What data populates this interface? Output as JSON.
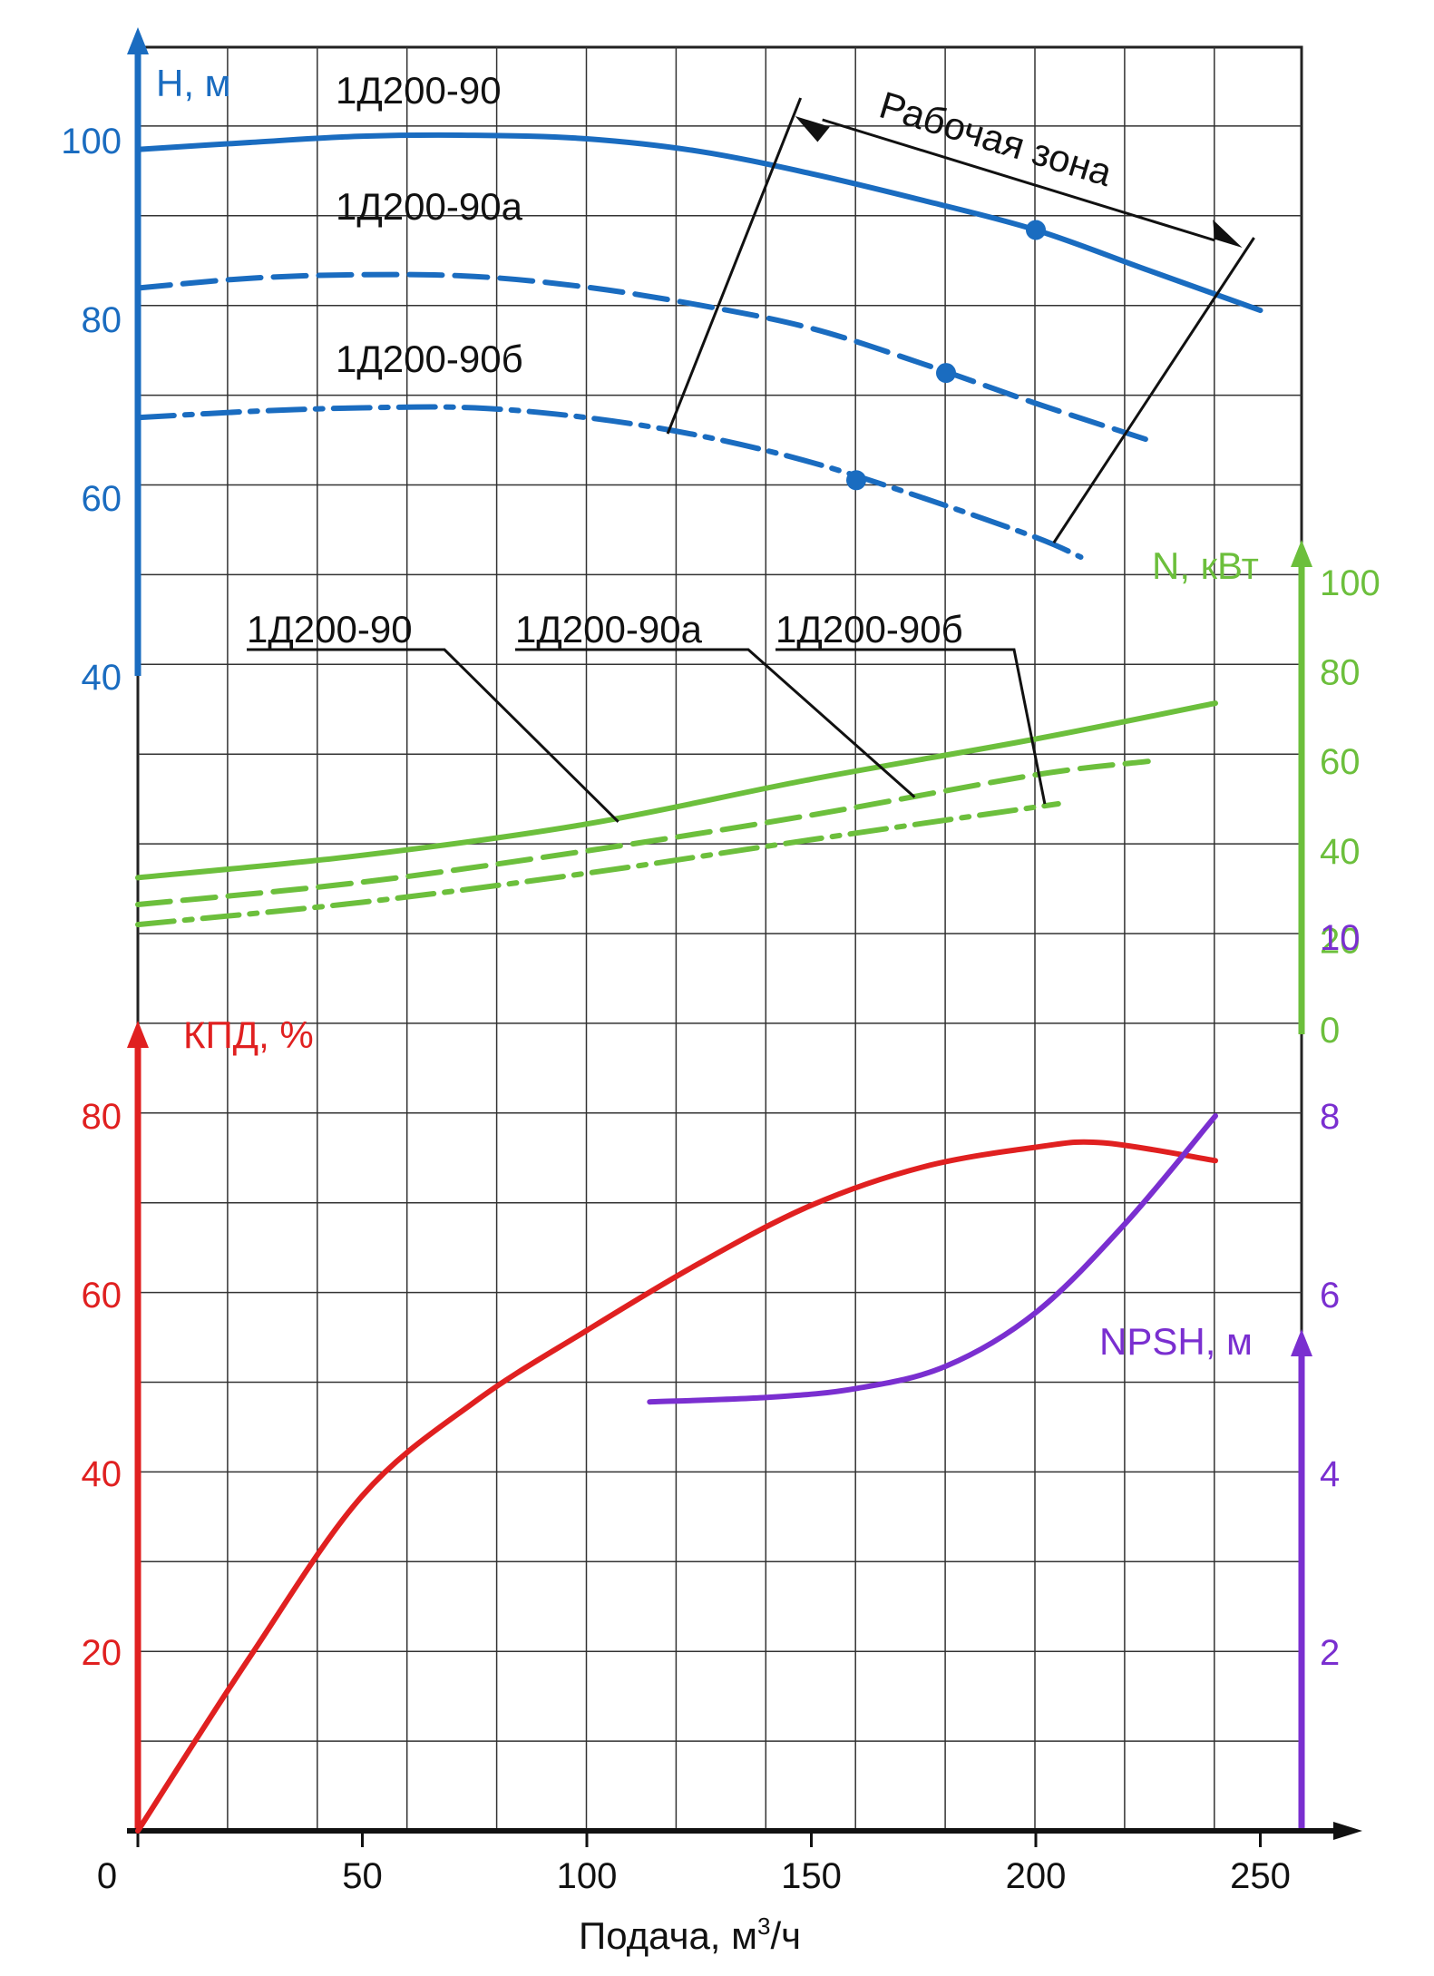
{
  "chart_data": {
    "type": "line",
    "title": "",
    "colors": {
      "head": "#1a6cc0",
      "power": "#6cbf3c",
      "efficiency": "#e02020",
      "npsh": "#7a2fd0",
      "grid": "#333333",
      "text": "#111111"
    },
    "x_axis": {
      "label": "Подача, м³/ч",
      "label_main": "Подача, м",
      "label_sup": "3",
      "label_tail": "/ч",
      "range": [
        0,
        260
      ],
      "ticks": [
        0,
        50,
        100,
        150,
        200,
        250
      ],
      "tick_labels": [
        "0",
        "50",
        "100",
        "150",
        "200",
        "250"
      ]
    },
    "axes": {
      "head": {
        "label": "H, м",
        "range": [
          40,
          110
        ],
        "ticks": [
          40,
          60,
          80,
          100
        ],
        "tick_labels": [
          "40",
          "60",
          "80",
          "100"
        ]
      },
      "power": {
        "label": "N, кВт",
        "range": [
          0,
          100
        ],
        "ticks": [
          0,
          20,
          40,
          60,
          80,
          100
        ],
        "tick_labels": [
          "0",
          "20",
          "40",
          "60",
          "80",
          "100"
        ]
      },
      "efficiency": {
        "label": "КПД, %",
        "range": [
          0,
          85
        ],
        "ticks": [
          20,
          40,
          60,
          80
        ],
        "tick_labels": [
          "20",
          "40",
          "60",
          "80"
        ]
      },
      "npsh": {
        "label": "NPSH, м",
        "range": [
          0,
          10
        ],
        "ticks": [
          2,
          4,
          6,
          8,
          10
        ],
        "tick_labels": [
          "2",
          "4",
          "6",
          "8",
          "10"
        ]
      }
    },
    "grid": true,
    "head_series": [
      {
        "name": "1Д200-90",
        "style": "solid",
        "x": [
          0,
          25,
          50,
          75,
          100,
          125,
          150,
          175,
          200,
          225,
          250
        ],
        "y": [
          99,
          99.8,
          100.5,
          100.6,
          100.2,
          98.8,
          96.3,
          93.3,
          90,
          85.5,
          81
        ],
        "marker": [
          200,
          90
        ]
      },
      {
        "name": "1Д200-90а",
        "style": "dashed",
        "x": [
          0,
          25,
          50,
          75,
          100,
          125,
          150,
          175,
          200,
          225
        ],
        "y": [
          83.5,
          84.6,
          85,
          84.8,
          83.6,
          81.6,
          79,
          75,
          70.6,
          66.5
        ],
        "marker": [
          180,
          74
        ]
      },
      {
        "name": "1Д200-90б",
        "style": "dashdot",
        "x": [
          0,
          25,
          50,
          75,
          100,
          125,
          150,
          175,
          200,
          210
        ],
        "y": [
          69,
          69.7,
          70.1,
          70.1,
          69,
          67,
          64,
          60,
          55.6,
          53.4
        ],
        "marker": [
          160,
          62
        ]
      }
    ],
    "work_zone": {
      "label": "Рабочая зона",
      "arrow_x": [
        147,
        248
      ]
    },
    "power_series": [
      {
        "name": "1Д200-90",
        "style": "solid",
        "x": [
          0,
          50,
          100,
          150,
          200,
          240
        ],
        "y": [
          34,
          39,
          46,
          56,
          65,
          73
        ]
      },
      {
        "name": "1Д200-90а",
        "style": "dashed",
        "x": [
          0,
          50,
          100,
          150,
          200,
          225
        ],
        "y": [
          28,
          33,
          40,
          48,
          57,
          60
        ]
      },
      {
        "name": "1Д200-90б",
        "style": "dashdot",
        "x": [
          0,
          50,
          100,
          150,
          205
        ],
        "y": [
          23.5,
          28.5,
          35,
          42.5,
          50.5
        ]
      }
    ],
    "power_labels": [
      "1Д200-90",
      "1Д200-90а",
      "1Д200-90б"
    ],
    "efficiency_series": {
      "name": "КПД",
      "x": [
        0,
        25,
        50,
        75,
        100,
        125,
        150,
        175,
        200,
        215,
        240
      ],
      "y": [
        0,
        19.5,
        37.5,
        48,
        56,
        63.5,
        70,
        74.3,
        76.5,
        77,
        75
      ]
    },
    "npsh_series": {
      "name": "NPSH",
      "x": [
        114,
        140,
        160,
        180,
        200,
        220,
        240
      ],
      "y": [
        4.8,
        4.85,
        4.95,
        5.2,
        5.8,
        6.8,
        8
      ]
    }
  }
}
